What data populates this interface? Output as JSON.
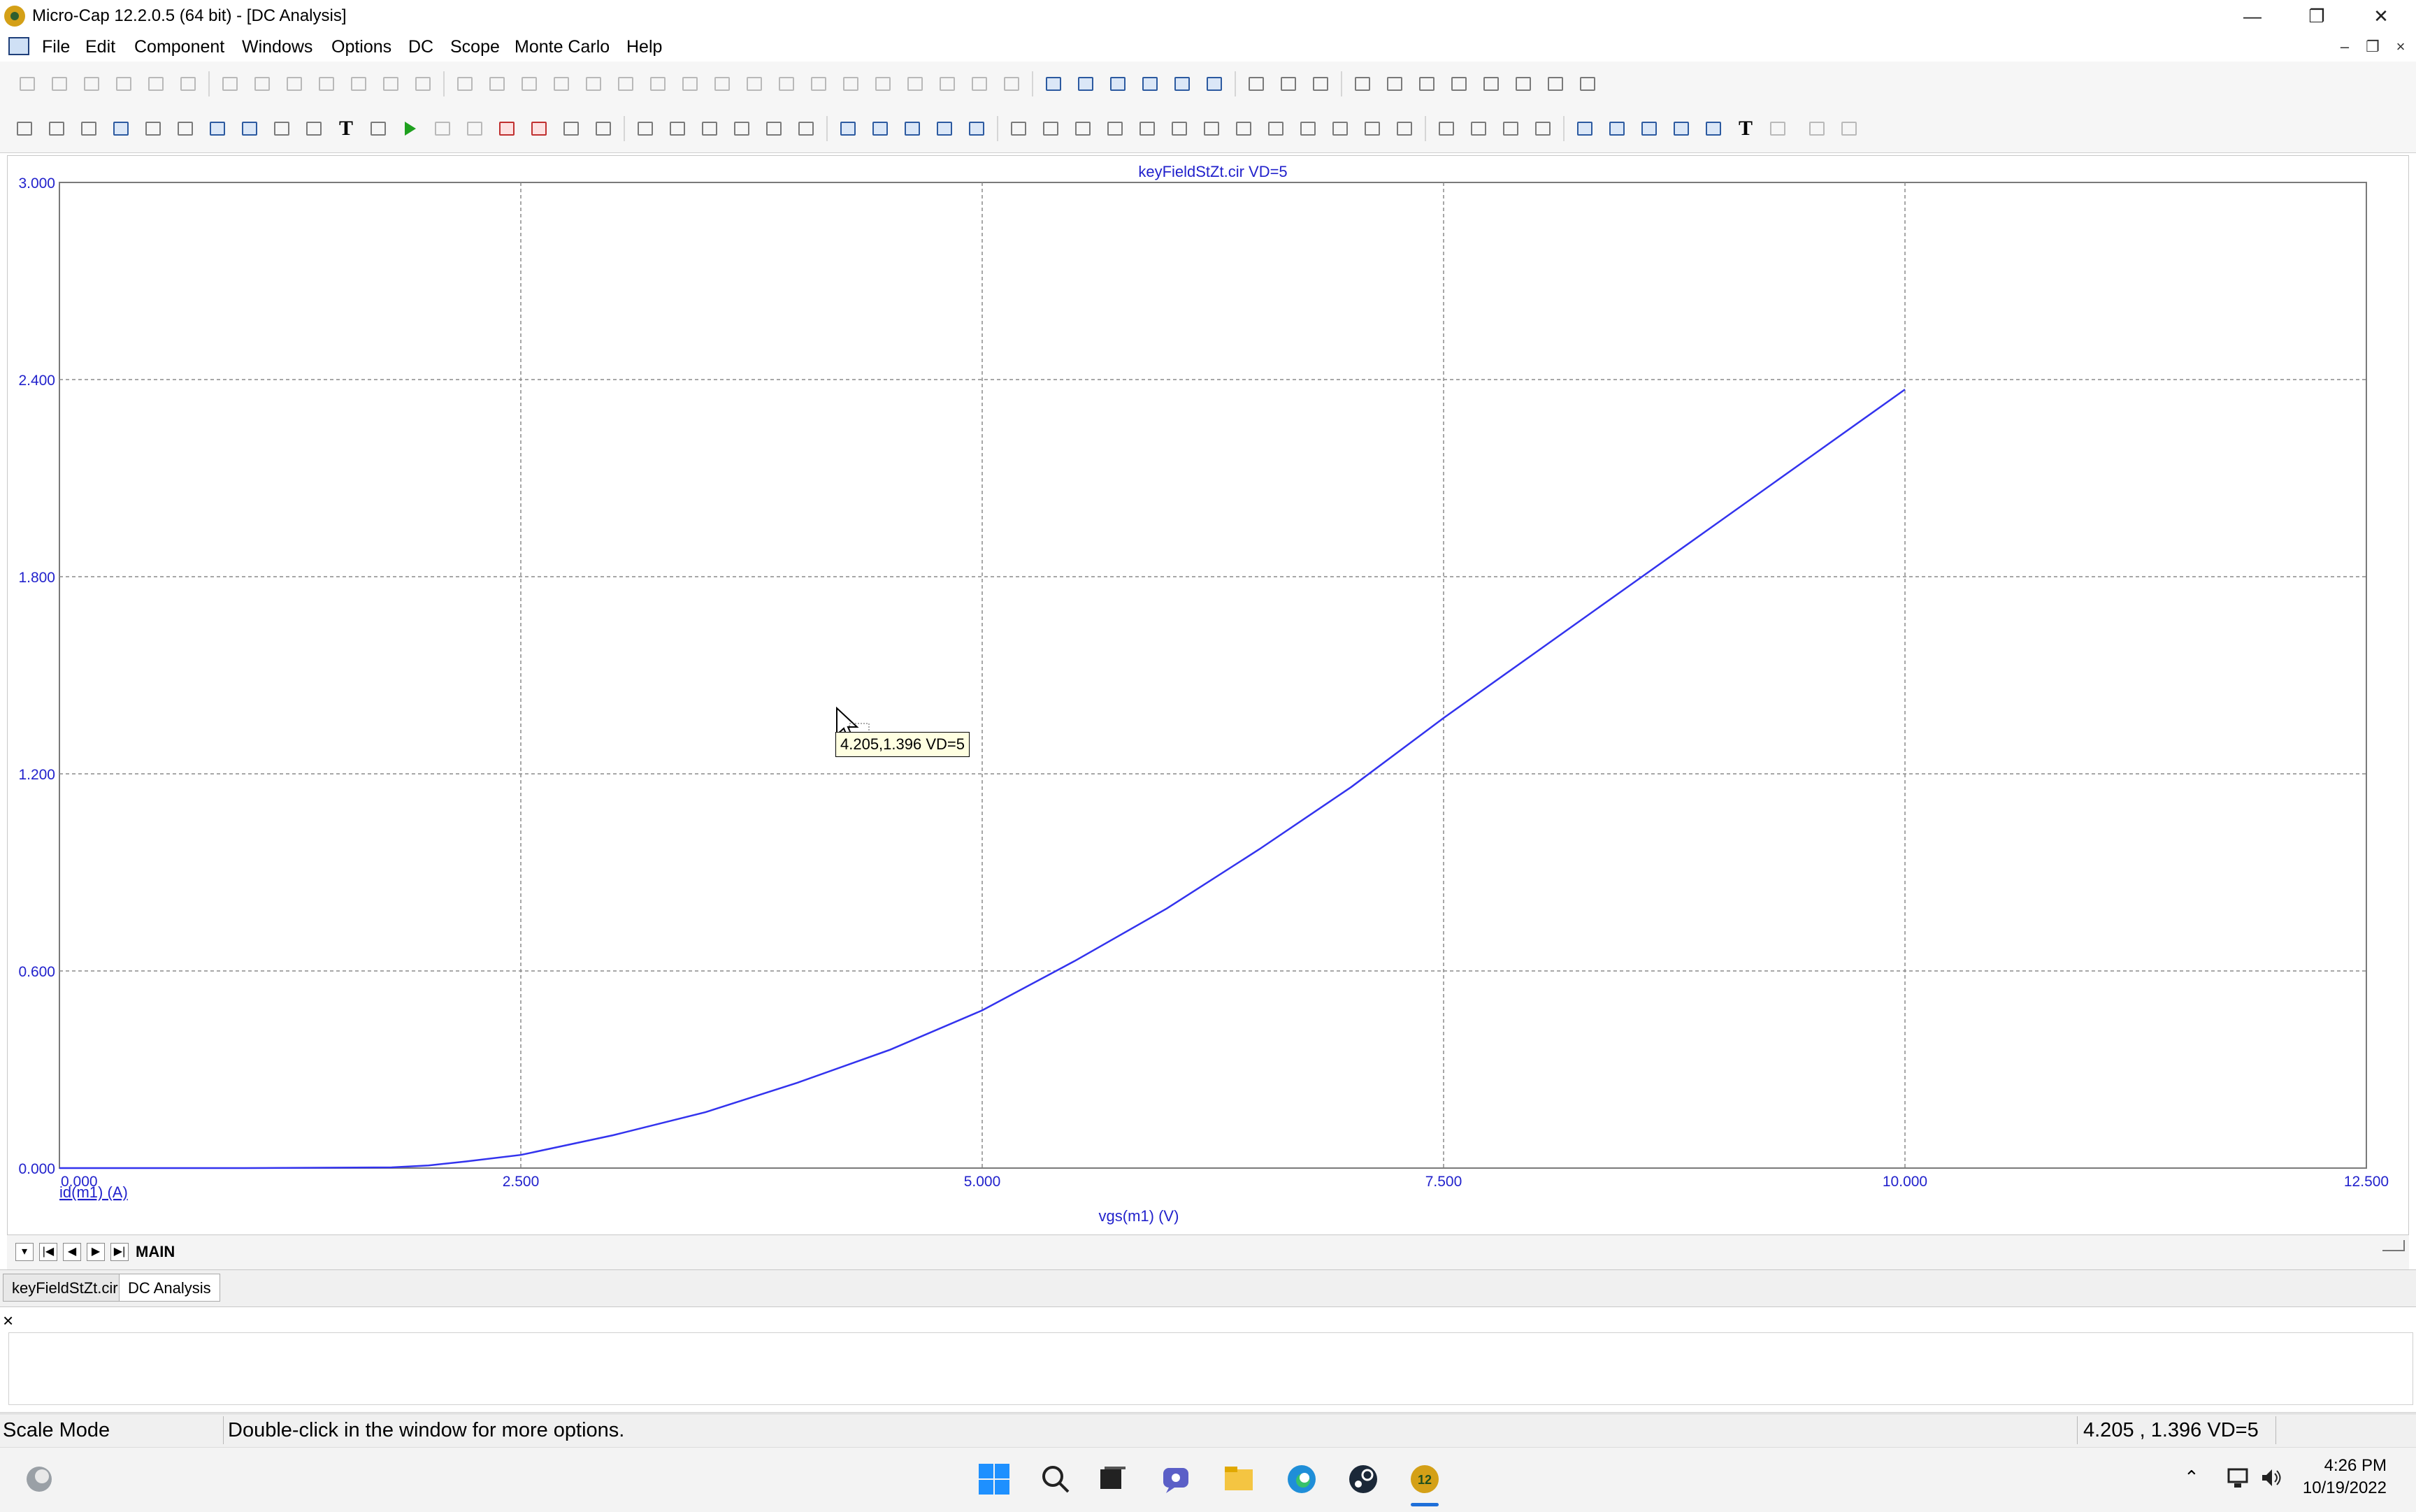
{
  "window": {
    "title": "Micro-Cap 12.2.0.5 (64 bit) - [DC Analysis]"
  },
  "menu": {
    "items": [
      "File",
      "Edit",
      "Component",
      "Windows",
      "Options",
      "DC",
      "Scope",
      "Monte Carlo",
      "Help"
    ]
  },
  "chart_data": {
    "type": "line",
    "title": "keyFieldStZt.cir VD=5",
    "xlabel": "vgs(m1) (V)",
    "ylabel": "id(m1) (A)",
    "xlim": [
      0,
      12.5
    ],
    "ylim": [
      0,
      3.0
    ],
    "xticks": [
      "0.000",
      "2.500",
      "5.000",
      "7.500",
      "10.000",
      "12.500"
    ],
    "yticks": [
      "0.000",
      "0.600",
      "1.200",
      "1.800",
      "2.400",
      "3.000"
    ],
    "grid": true,
    "series": [
      {
        "color": "#3333ee",
        "x": [
          0,
          1.0,
          1.8,
          2.0,
          2.2,
          2.5,
          3.0,
          3.5,
          4.0,
          4.5,
          5.0,
          5.5,
          6.0,
          6.5,
          7.0,
          7.5,
          8.0,
          8.5,
          9.0,
          9.5,
          10.0
        ],
        "y": [
          0,
          0,
          0.002,
          0.008,
          0.02,
          0.04,
          0.1,
          0.17,
          0.26,
          0.36,
          0.48,
          0.63,
          0.79,
          0.97,
          1.16,
          1.37,
          1.57,
          1.77,
          1.97,
          2.17,
          2.37
        ]
      }
    ]
  },
  "plot": {
    "cursor_tooltip": "4.205,1.396 VD=5",
    "page_tab": "MAIN"
  },
  "tabs": {
    "items": [
      "keyFieldStZt.cir",
      "DC Analysis"
    ],
    "active": 1
  },
  "status": {
    "mode": "Scale Mode",
    "hint": "Double-click in the window for more options.",
    "readout": "4.205 , 1.396 VD=5"
  },
  "taskbar": {
    "time": "4:26 PM",
    "date": "10/19/2022"
  }
}
